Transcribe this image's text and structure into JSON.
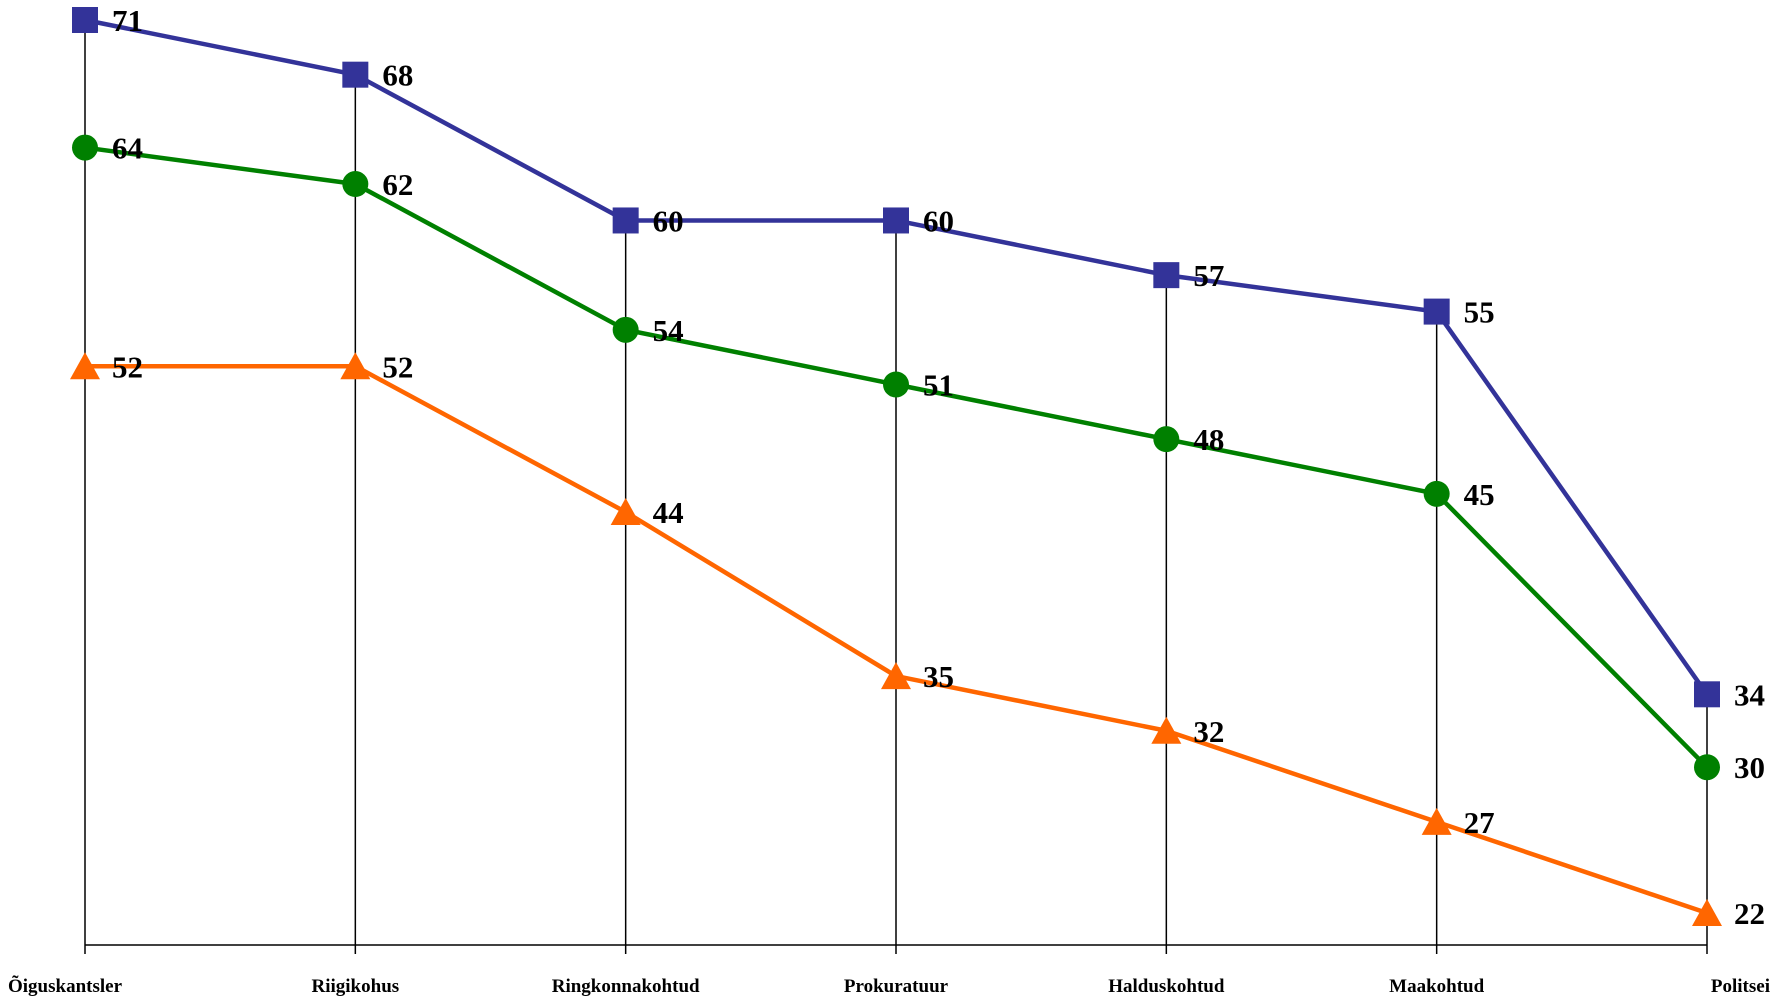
{
  "chart_data": {
    "type": "line",
    "title": "",
    "xlabel": "",
    "ylabel": "",
    "ylim": [
      18,
      72
    ],
    "grid": "vertical drop lines at each category",
    "legend": "none",
    "categories": [
      "Õiguskantsler",
      "Riigikohus",
      "Ringkonnakohtud",
      "Prokuratuur",
      "Halduskohtud",
      "Maakohtud",
      "Politsei"
    ],
    "series": [
      {
        "values": [
          71,
          68,
          60,
          60,
          57,
          55,
          34
        ],
        "color": "#333399",
        "marker": "square"
      },
      {
        "values": [
          64,
          62,
          54,
          51,
          48,
          45,
          30
        ],
        "color": "#008000",
        "marker": "circle"
      },
      {
        "values": [
          52,
          52,
          44,
          35,
          32,
          27,
          22
        ],
        "color": "#FF6600",
        "marker": "triangle"
      }
    ]
  }
}
